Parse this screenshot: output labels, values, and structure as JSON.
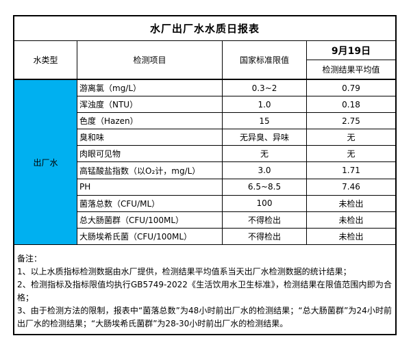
{
  "report": {
    "title": "水厂出厂水水质日报表",
    "header": {
      "water_type": "水类型",
      "item": "检测项目",
      "standard_limit": "国家标准限值",
      "date": "9月19日",
      "result_avg": "检测结果平均值"
    },
    "water_type_value": "出厂水",
    "rows": [
      {
        "item": "游离氯（mg/L）",
        "limit": "0.3~2",
        "result": "0.79"
      },
      {
        "item": "浑浊度（NTU）",
        "limit": "1.0",
        "result": "0.18"
      },
      {
        "item": "色度（Hazen）",
        "limit": "15",
        "result": "2.75"
      },
      {
        "item": "臭和味",
        "limit": "无异臭、异味",
        "result": "无"
      },
      {
        "item": "肉眼可见物",
        "limit": "无",
        "result": "无"
      },
      {
        "item": "高锰酸盐指数（以O₂计，mg/L）",
        "limit": "3.0",
        "result": "1.71"
      },
      {
        "item": "PH",
        "limit": "6.5~8.5",
        "result": "7.46"
      },
      {
        "item": "菌落总数（CFU/ML）",
        "limit": "100",
        "result": "未检出"
      },
      {
        "item": "总大肠菌群（CFU/100ML）",
        "limit": "不得检出",
        "result": "未检出"
      },
      {
        "item": "大肠埃希氏菌（CFU/100ML）",
        "limit": "不得检出",
        "result": "未检出"
      }
    ],
    "notes": {
      "label": "备注：",
      "items": [
        "1、以上水质指标检测数据由水厂提供，检测结果平均值系当天出厂水检测数据的统计结果；",
        "2、检测指标及指标限值均执行GB5749-2022《生活饮用水卫生标准》，检测结果在限值范围内即为合格；",
        "3、由于检测方法的限制，报表中“菌落总数”为48小时前出厂水的检测结果；“总大肠菌群”为24小时前出厂水的检测结果；“大肠埃希氏菌群”为28-30小时前出厂水的检测结果。"
      ]
    },
    "colors": {
      "water_type_bg": "#00B0F0",
      "border": "#000000",
      "text": "#000000",
      "background": "#FFFFFF"
    }
  }
}
